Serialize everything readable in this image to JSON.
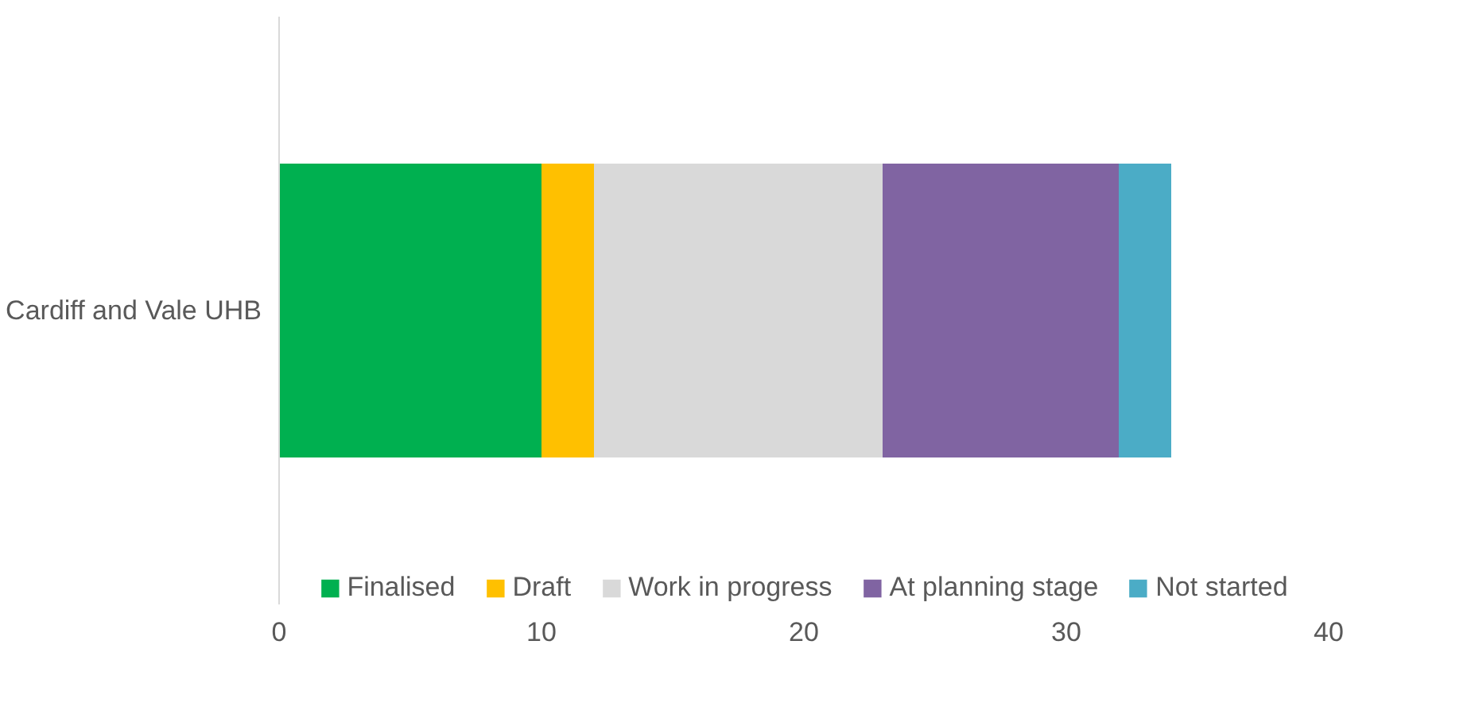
{
  "chart_data": {
    "type": "bar",
    "orientation": "horizontal",
    "stacked": true,
    "categories": [
      "Cardiff and Vale UHB"
    ],
    "series": [
      {
        "name": "Finalised",
        "color": "#00b050",
        "values": [
          10
        ]
      },
      {
        "name": "Draft",
        "color": "#ffc000",
        "values": [
          2
        ]
      },
      {
        "name": "Work in progress",
        "color": "#d9d9d9",
        "values": [
          11
        ]
      },
      {
        "name": "At planning stage",
        "color": "#8064a2",
        "values": [
          9
        ]
      },
      {
        "name": "Not started",
        "color": "#4bacc6",
        "values": [
          2
        ]
      }
    ],
    "xlim": [
      0,
      40
    ],
    "xticks": [
      0,
      10,
      20,
      30,
      40
    ],
    "grid": false,
    "legend": "bottom"
  }
}
